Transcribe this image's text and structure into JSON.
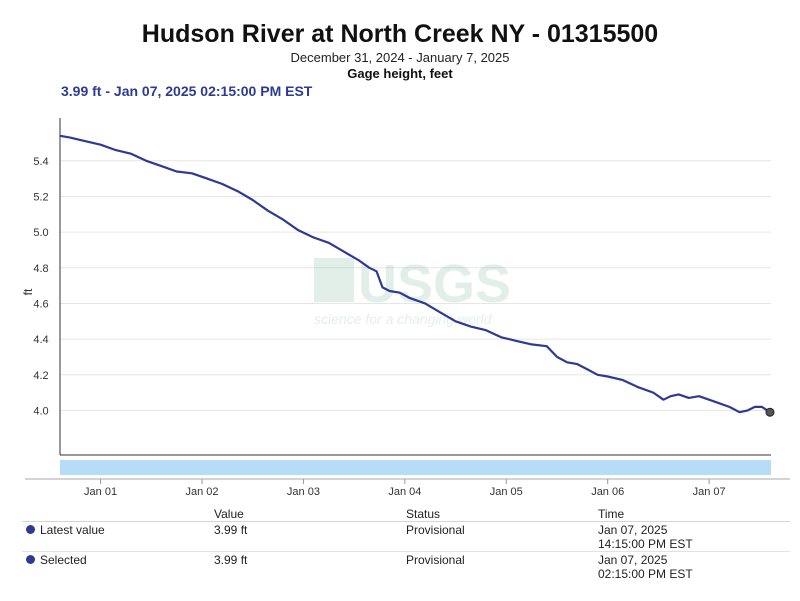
{
  "title": "Hudson River at North Creek NY - 01315500",
  "date_range": "December 31, 2024 - January 7, 2025",
  "parameter": "Gage height, feet",
  "hover_readout": "3.99 ft - Jan 07, 2025 02:15:00 PM EST",
  "watermark": {
    "logo": "USGS",
    "tagline": "science for a changing world"
  },
  "colors": {
    "line": "#2d3a94",
    "navigator": "#b6dcf7",
    "grid": "#e6e6e6"
  },
  "chart_data": {
    "type": "line",
    "ylabel": "ft",
    "ylim": [
      3.75,
      5.64
    ],
    "yticks": [
      "4.0",
      "4.2",
      "4.4",
      "4.6",
      "4.8",
      "5.0",
      "5.2",
      "5.4"
    ],
    "xlim": [
      0.6,
      7.61
    ],
    "xticks": [
      {
        "x": 1,
        "label": "Jan 01"
      },
      {
        "x": 2,
        "label": "Jan 02"
      },
      {
        "x": 3,
        "label": "Jan 03"
      },
      {
        "x": 4,
        "label": "Jan 04"
      },
      {
        "x": 5,
        "label": "Jan 05"
      },
      {
        "x": 6,
        "label": "Jan 06"
      },
      {
        "x": 7,
        "label": "Jan 07"
      }
    ],
    "series": [
      {
        "x": [
          0.6,
          0.7,
          0.85,
          1.0,
          1.15,
          1.3,
          1.45,
          1.6,
          1.75,
          1.9,
          2.05,
          2.2,
          2.35,
          2.5,
          2.65,
          2.8,
          2.95,
          3.1,
          3.25,
          3.4,
          3.55,
          3.65,
          3.72,
          3.78,
          3.85,
          3.95,
          4.05,
          4.2,
          4.35,
          4.5,
          4.65,
          4.8,
          4.95,
          5.1,
          5.25,
          5.4,
          5.5,
          5.6,
          5.7,
          5.8,
          5.9,
          6.0,
          6.15,
          6.3,
          6.45,
          6.55,
          6.62,
          6.7,
          6.8,
          6.9,
          7.0,
          7.1,
          7.2,
          7.3,
          7.38,
          7.45,
          7.52,
          7.6
        ],
        "y": [
          5.54,
          5.53,
          5.51,
          5.49,
          5.46,
          5.44,
          5.4,
          5.37,
          5.34,
          5.33,
          5.3,
          5.27,
          5.23,
          5.18,
          5.12,
          5.07,
          5.01,
          4.97,
          4.94,
          4.89,
          4.84,
          4.8,
          4.78,
          4.69,
          4.67,
          4.66,
          4.63,
          4.6,
          4.55,
          4.5,
          4.47,
          4.45,
          4.41,
          4.39,
          4.37,
          4.36,
          4.3,
          4.27,
          4.26,
          4.23,
          4.2,
          4.19,
          4.17,
          4.13,
          4.1,
          4.06,
          4.08,
          4.09,
          4.07,
          4.08,
          4.06,
          4.04,
          4.02,
          3.99,
          4.0,
          4.02,
          4.02,
          3.99
        ]
      }
    ]
  },
  "table": {
    "headers": {
      "value": "Value",
      "status": "Status",
      "time": "Time"
    },
    "rows": [
      {
        "label": "Latest value",
        "value": "3.99 ft",
        "status": "Provisional",
        "time1": "Jan 07, 2025",
        "time2": "14:15:00 PM EST"
      },
      {
        "label": "Selected",
        "value": "3.99 ft",
        "status": "Provisional",
        "time1": "Jan 07, 2025",
        "time2": "02:15:00 PM EST"
      }
    ]
  }
}
